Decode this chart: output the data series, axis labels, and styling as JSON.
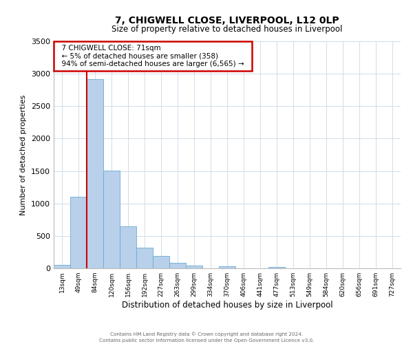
{
  "title": "7, CHIGWELL CLOSE, LIVERPOOL, L12 0LP",
  "subtitle": "Size of property relative to detached houses in Liverpool",
  "xlabel": "Distribution of detached houses by size in Liverpool",
  "ylabel": "Number of detached properties",
  "bar_color": "#b8d0ea",
  "bar_edge_color": "#6aaad4",
  "background_color": "#ffffff",
  "grid_color": "#d0dde8",
  "bin_labels": [
    "13sqm",
    "49sqm",
    "84sqm",
    "120sqm",
    "156sqm",
    "192sqm",
    "227sqm",
    "263sqm",
    "299sqm",
    "334sqm",
    "370sqm",
    "406sqm",
    "441sqm",
    "477sqm",
    "513sqm",
    "549sqm",
    "584sqm",
    "620sqm",
    "656sqm",
    "691sqm",
    "727sqm"
  ],
  "bar_heights": [
    50,
    1100,
    2920,
    1510,
    650,
    320,
    195,
    90,
    40,
    0,
    30,
    0,
    0,
    25,
    0,
    0,
    0,
    0,
    0,
    0,
    0
  ],
  "ylim": [
    0,
    3500
  ],
  "yticks": [
    0,
    500,
    1000,
    1500,
    2000,
    2500,
    3000,
    3500
  ],
  "annotation_title": "7 CHIGWELL CLOSE: 71sqm",
  "annotation_line1": "← 5% of detached houses are smaller (358)",
  "annotation_line2": "94% of semi-detached houses are larger (6,565) →",
  "footer1": "Contains HM Land Registry data © Crown copyright and database right 2024.",
  "footer2": "Contains public sector information licensed under the Open Government Licence v3.0.",
  "annotation_box_color": "#ffffff",
  "annotation_box_edge": "#cc0000",
  "red_line_color": "#cc0000",
  "red_line_x": 1.5
}
